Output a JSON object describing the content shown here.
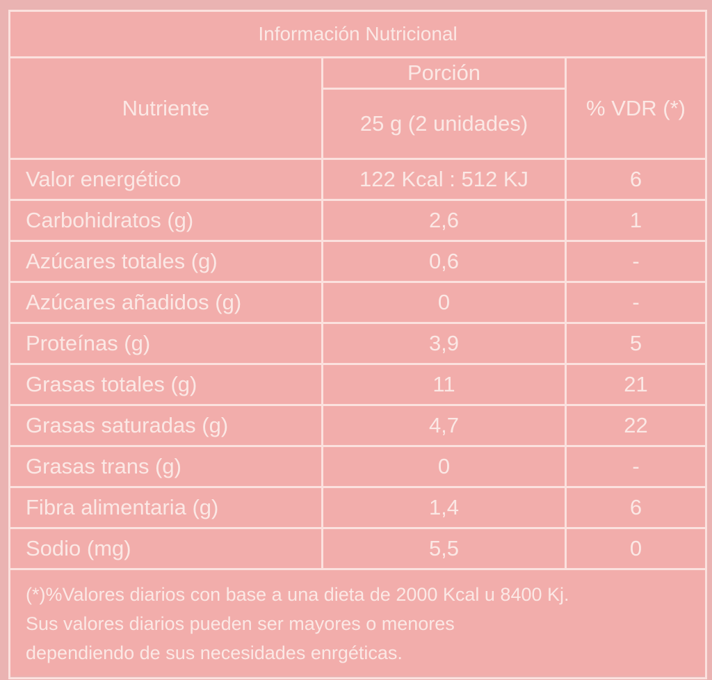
{
  "title": "Información Nutricional",
  "header": {
    "nutrient": "Nutriente",
    "portion": "Porción",
    "portion_size": "25 g (2 unidades)",
    "vdr": "% VDR (*)"
  },
  "rows": [
    {
      "nutrient": "Valor energético",
      "amount": "122 Kcal : 512 KJ",
      "vdr": "6"
    },
    {
      "nutrient": "Carbohidratos (g)",
      "amount": "2,6",
      "vdr": "1"
    },
    {
      "nutrient": "Azúcares totales (g)",
      "amount": "0,6",
      "vdr": "-"
    },
    {
      "nutrient": "Azúcares añadidos (g)",
      "amount": "0",
      "vdr": "-"
    },
    {
      "nutrient": "Proteínas (g)",
      "amount": "3,9",
      "vdr": "5"
    },
    {
      "nutrient": "Grasas totales (g)",
      "amount": "11",
      "vdr": "21"
    },
    {
      "nutrient": "Grasas saturadas (g)",
      "amount": "4,7",
      "vdr": "22"
    },
    {
      "nutrient": "Grasas trans (g)",
      "amount": "0",
      "vdr": "-"
    },
    {
      "nutrient": "Fibra alimentaria (g)",
      "amount": "1,4",
      "vdr": "6"
    },
    {
      "nutrient": "Sodio (mg)",
      "amount": "5,5",
      "vdr": "0"
    }
  ],
  "footnote": {
    "line1": "(*)%Valores diarios con base a una dieta de 2000 Kcal u 8400 Kj.",
    "line2": "Sus valores diarios pueden ser mayores o menores",
    "line3": "dependiendo de sus necesidades enrgéticas."
  },
  "colors": {
    "background": "#f2adab",
    "text": "#fbe8e5",
    "lines": "#fbe1de"
  }
}
